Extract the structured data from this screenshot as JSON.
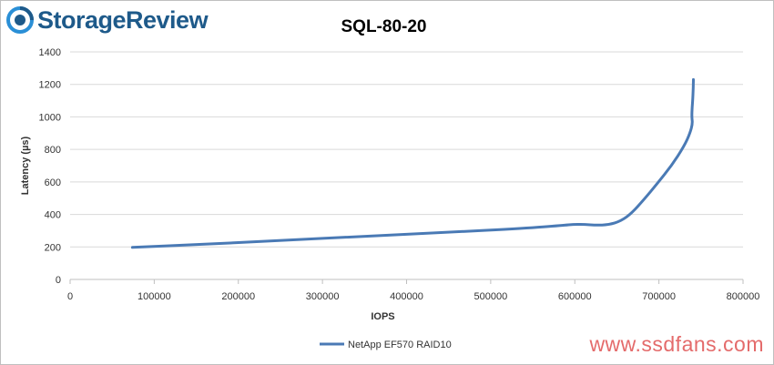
{
  "brand": {
    "name": "StorageReview",
    "logo_icon": "storagereview-logo-icon",
    "color": "#1e5a8a"
  },
  "watermark": {
    "text": "www.ssdfans.com",
    "color": "#e46b6b"
  },
  "chart_data": {
    "type": "line",
    "title": "SQL-80-20",
    "xlabel": "IOPS",
    "ylabel": "Latency (µs)",
    "xlim": [
      0,
      800000
    ],
    "ylim": [
      0,
      1400
    ],
    "xticks": [
      0,
      100000,
      200000,
      300000,
      400000,
      500000,
      600000,
      700000,
      800000
    ],
    "yticks": [
      0,
      200,
      400,
      600,
      800,
      1000,
      1200,
      1400
    ],
    "grid": true,
    "legend_position": "bottom",
    "series": [
      {
        "name": "NetApp EF570 RAID10",
        "color": "#4a7ab5",
        "points": [
          [
            74000,
            197
          ],
          [
            150000,
            214
          ],
          [
            250000,
            240
          ],
          [
            350000,
            265
          ],
          [
            450000,
            290
          ],
          [
            540000,
            315
          ],
          [
            585000,
            332
          ],
          [
            600000,
            340
          ],
          [
            612000,
            338
          ],
          [
            625000,
            334
          ],
          [
            640000,
            336
          ],
          [
            655000,
            360
          ],
          [
            668000,
            410
          ],
          [
            682000,
            490
          ],
          [
            698000,
            590
          ],
          [
            715000,
            700
          ],
          [
            730000,
            820
          ],
          [
            737000,
            900
          ],
          [
            740000,
            960
          ],
          [
            739000,
            1000
          ],
          [
            739500,
            1060
          ],
          [
            740500,
            1130
          ],
          [
            741000,
            1230
          ]
        ]
      }
    ]
  }
}
